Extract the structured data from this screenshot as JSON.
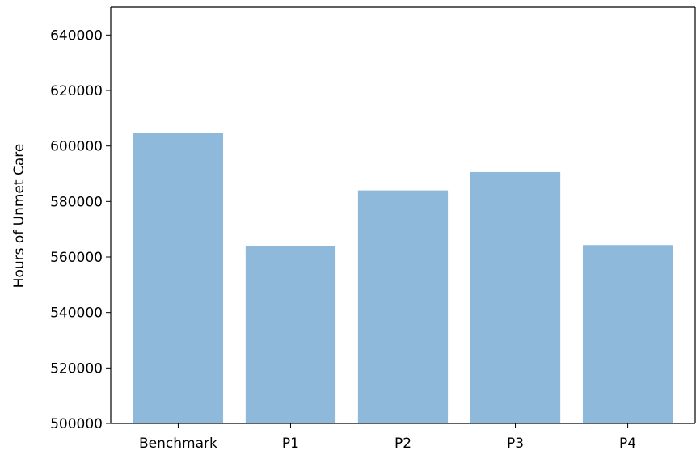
{
  "chart_data": {
    "type": "bar",
    "categories": [
      "Benchmark",
      "P1",
      "P2",
      "P3",
      "P4"
    ],
    "values": [
      604800,
      563800,
      584000,
      590600,
      564300
    ],
    "xlabel": "",
    "ylabel": "Hours of Unmet Care",
    "ylim": [
      500000,
      650000
    ],
    "yticks": [
      500000,
      520000,
      540000,
      560000,
      580000,
      600000,
      620000,
      640000
    ],
    "ytick_labels": [
      "500000",
      "520000",
      "540000",
      "560000",
      "580000",
      "600000",
      "620000",
      "640000"
    ],
    "grid": false,
    "bar_color": "#8fb9da"
  }
}
